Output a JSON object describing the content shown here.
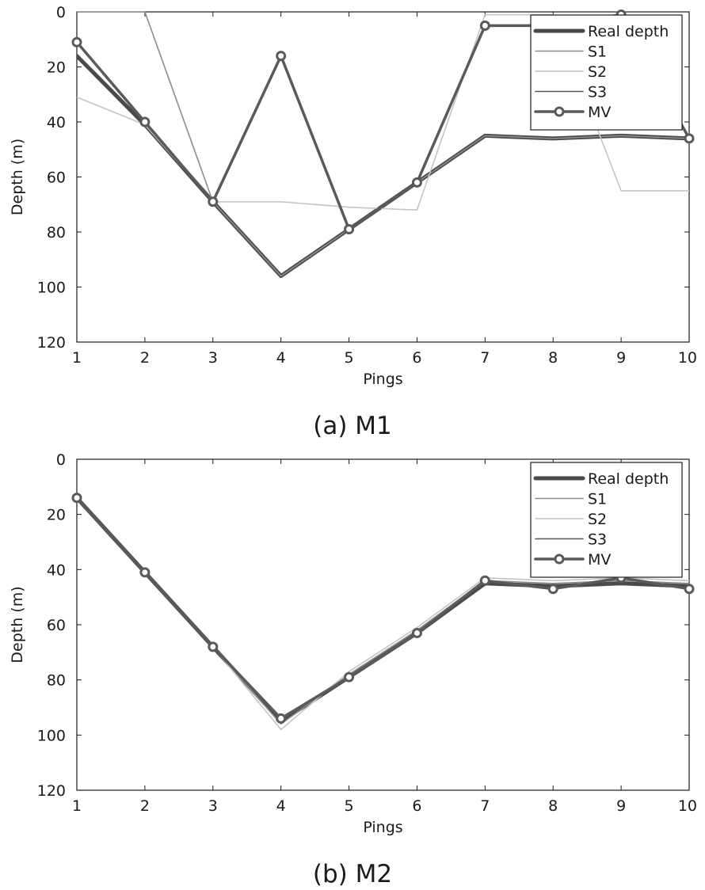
{
  "charts_order": [
    "a",
    "b"
  ],
  "chart_data": [
    {
      "type": "line",
      "caption": "(a)  M1",
      "xlabel": "Pings",
      "ylabel": "Depth (m)",
      "xlim": [
        1,
        10
      ],
      "ylim": [
        0,
        120
      ],
      "y_reversed": true,
      "xticks": [
        1,
        2,
        3,
        4,
        5,
        6,
        7,
        8,
        9,
        10
      ],
      "yticks": [
        0,
        20,
        40,
        60,
        80,
        100,
        120
      ],
      "grid": false,
      "legend_position": "top-right",
      "x": [
        1,
        2,
        3,
        4,
        5,
        6,
        7,
        8,
        9,
        10
      ],
      "series": [
        {
          "name": "Real depth",
          "values": [
            16,
            41,
            69,
            96,
            79,
            62,
            45,
            46,
            45,
            46
          ],
          "color": "#4a4a4a",
          "width": 5,
          "marker": false
        },
        {
          "name": "S1",
          "values": [
            0,
            0,
            69,
            96,
            79,
            62,
            45,
            46,
            45,
            46
          ],
          "color": "#8c8c8c",
          "width": 1.6,
          "marker": false
        },
        {
          "name": "S2",
          "values": [
            31,
            41,
            69,
            69,
            71,
            72,
            1,
            1,
            65,
            65
          ],
          "color": "#c4c4c4",
          "width": 1.6,
          "marker": false
        },
        {
          "name": "S3",
          "values": [
            11,
            40,
            69,
            16,
            79,
            62,
            5,
            5,
            1,
            46
          ],
          "color": "#555555",
          "width": 1.6,
          "marker": false
        },
        {
          "name": "MV",
          "values": [
            11,
            40,
            69,
            16,
            79,
            62,
            5,
            5,
            1,
            46
          ],
          "color": "#5a5a5a",
          "width": 3.5,
          "marker": true
        }
      ]
    },
    {
      "type": "line",
      "caption": "(b)  M2",
      "xlabel": "Pings",
      "ylabel": "Depth (m)",
      "xlim": [
        1,
        10
      ],
      "ylim": [
        0,
        120
      ],
      "y_reversed": true,
      "xticks": [
        1,
        2,
        3,
        4,
        5,
        6,
        7,
        8,
        9,
        10
      ],
      "yticks": [
        0,
        20,
        40,
        60,
        80,
        100,
        120
      ],
      "grid": false,
      "legend_position": "top-right",
      "x": [
        1,
        2,
        3,
        4,
        5,
        6,
        7,
        8,
        9,
        10
      ],
      "series": [
        {
          "name": "Real depth",
          "values": [
            14,
            41,
            68,
            95,
            79,
            63,
            45,
            46,
            45,
            46
          ],
          "color": "#4a4a4a",
          "width": 5,
          "marker": false
        },
        {
          "name": "S1",
          "values": [
            14,
            41,
            68,
            96,
            78,
            62,
            44,
            45,
            44,
            45
          ],
          "color": "#8c8c8c",
          "width": 1.6,
          "marker": false
        },
        {
          "name": "S2",
          "values": [
            14,
            41,
            68,
            98,
            77,
            61,
            43,
            44,
            43,
            44
          ],
          "color": "#c4c4c4",
          "width": 1.6,
          "marker": false
        },
        {
          "name": "S3",
          "values": [
            14,
            41,
            68,
            94,
            79,
            63,
            44,
            47,
            43,
            47
          ],
          "color": "#555555",
          "width": 1.6,
          "marker": false
        },
        {
          "name": "MV",
          "values": [
            14,
            41,
            68,
            94,
            79,
            63,
            44,
            47,
            43,
            47
          ],
          "color": "#5a5a5a",
          "width": 3.5,
          "marker": true
        }
      ]
    }
  ]
}
